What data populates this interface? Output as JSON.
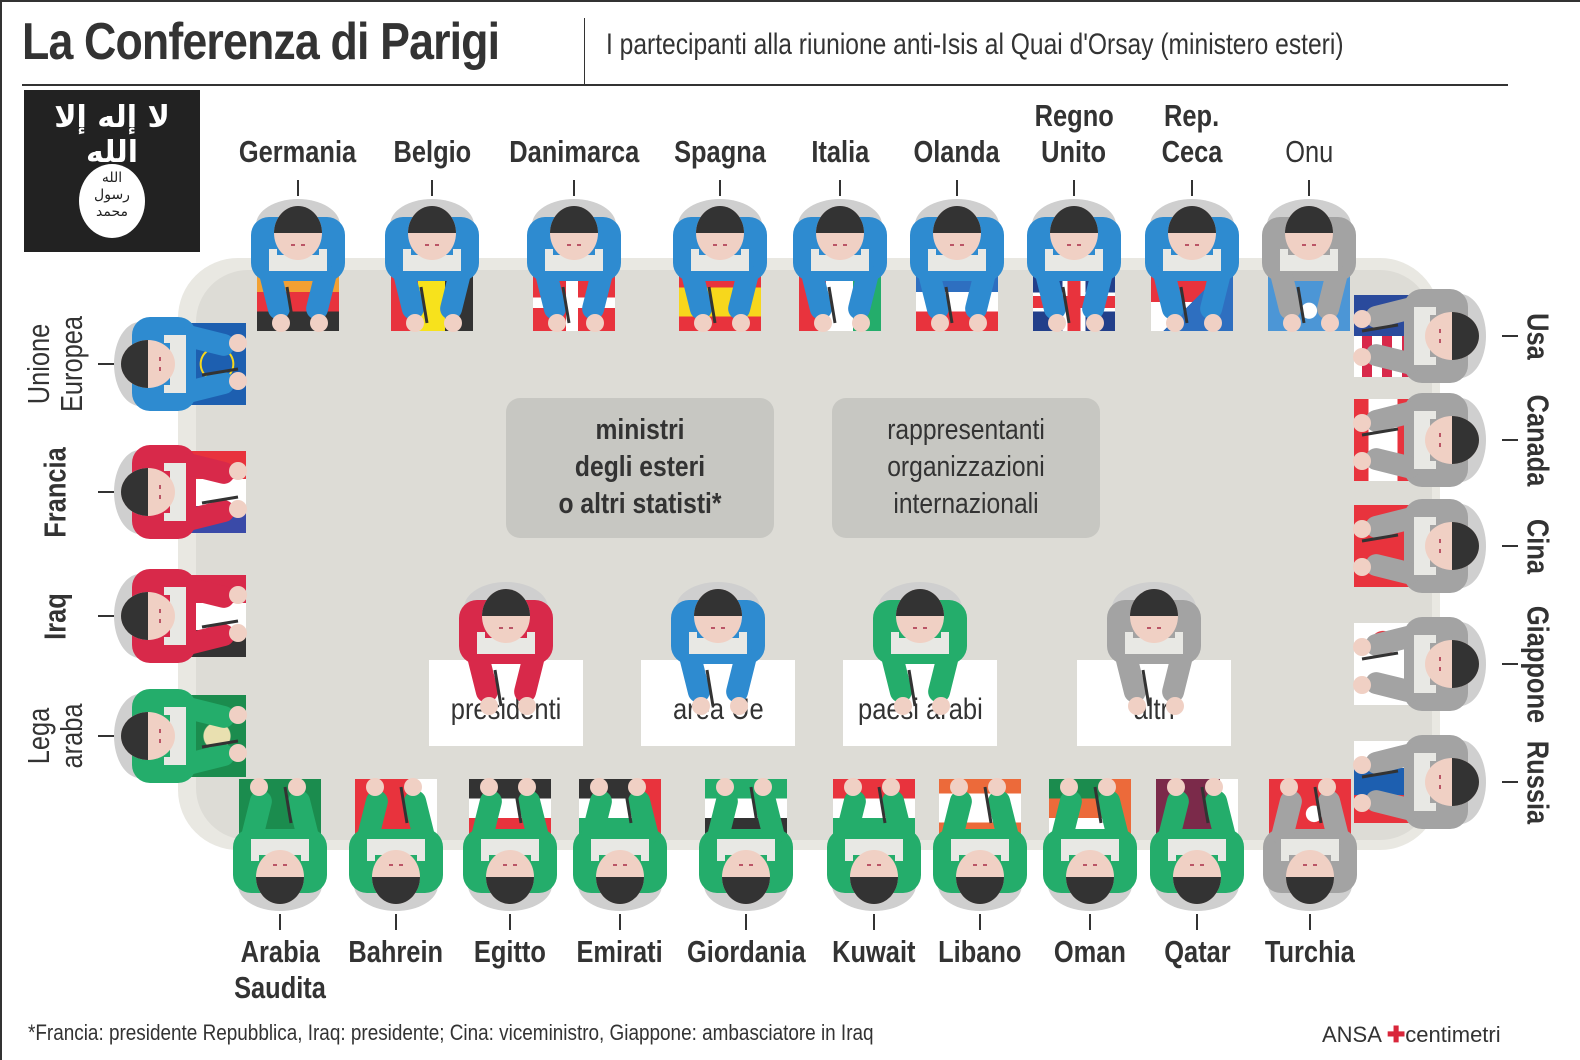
{
  "header": {
    "title": "La Conferenza di Parigi",
    "subtitle": "I partecipanti alla riunione anti-Isis al Quai d'Orsay (ministero esteri)"
  },
  "isis_flag": {
    "top_script": "لا إله إلا الله",
    "seal_lines": [
      "الله",
      "رسول",
      "محمد"
    ]
  },
  "colors": {
    "presidenti": "#d8294a",
    "area_ue": "#2e8bd0",
    "paesi_arabi": "#24ad6b",
    "altri": "#a3a3a3",
    "table": "#dddcd6",
    "table_edge": "#e9e8e2",
    "legend_box": "#c7c7c2",
    "text": "#333333"
  },
  "legend": {
    "ministri_lines": [
      "ministri",
      "degli esteri",
      "o altri statisti*"
    ],
    "rappresentanti_lines": [
      "rappresentanti",
      "organizzazioni",
      "internazionali"
    ],
    "categories": [
      {
        "label": "presidenti",
        "color": "#d8294a"
      },
      {
        "label": "area Ue",
        "color": "#2e8bd0"
      },
      {
        "label": "paesi arabi",
        "color": "#24ad6b"
      },
      {
        "label": "altri",
        "color": "#a3a3a3"
      }
    ]
  },
  "seats": {
    "top": [
      {
        "name": "Germania",
        "lines": [
          "Germania"
        ],
        "group": "area Ue",
        "role": "ministri"
      },
      {
        "name": "Belgio",
        "lines": [
          "Belgio"
        ],
        "group": "area Ue",
        "role": "ministri"
      },
      {
        "name": "Danimarca",
        "lines": [
          "Danimarca"
        ],
        "group": "area Ue",
        "role": "ministri"
      },
      {
        "name": "Spagna",
        "lines": [
          "Spagna"
        ],
        "group": "area Ue",
        "role": "ministri"
      },
      {
        "name": "Italia",
        "lines": [
          "Italia"
        ],
        "group": "area Ue",
        "role": "ministri"
      },
      {
        "name": "Olanda",
        "lines": [
          "Olanda"
        ],
        "group": "area Ue",
        "role": "ministri"
      },
      {
        "name": "Regno Unito",
        "lines": [
          "Regno",
          "Unito"
        ],
        "group": "area Ue",
        "role": "ministri"
      },
      {
        "name": "Rep. Ceca",
        "lines": [
          "Rep.",
          "Ceca"
        ],
        "group": "area Ue",
        "role": "ministri"
      },
      {
        "name": "Onu",
        "lines": [
          "Onu"
        ],
        "group": "altri",
        "role": "rappresentanti"
      }
    ],
    "left": [
      {
        "name": "Unione Europea",
        "lines": [
          "Unione",
          "Europea"
        ],
        "group": "area Ue",
        "role": "rappresentanti"
      },
      {
        "name": "Francia",
        "lines": [
          "Francia"
        ],
        "group": "presidenti",
        "role": "ministri"
      },
      {
        "name": "Iraq",
        "lines": [
          "Iraq"
        ],
        "group": "presidenti",
        "role": "ministri"
      },
      {
        "name": "Lega araba",
        "lines": [
          "Lega",
          "araba"
        ],
        "group": "paesi arabi",
        "role": "rappresentanti"
      }
    ],
    "right": [
      {
        "name": "Usa",
        "lines": [
          "Usa"
        ],
        "group": "altri",
        "role": "ministri"
      },
      {
        "name": "Canada",
        "lines": [
          "Canada"
        ],
        "group": "altri",
        "role": "ministri"
      },
      {
        "name": "Cina",
        "lines": [
          "Cina"
        ],
        "group": "altri",
        "role": "ministri"
      },
      {
        "name": "Giappone",
        "lines": [
          "Giappone"
        ],
        "group": "altri",
        "role": "ministri"
      },
      {
        "name": "Russia",
        "lines": [
          "Russia"
        ],
        "group": "altri",
        "role": "ministri"
      }
    ],
    "bottom": [
      {
        "name": "Arabia Saudita",
        "lines": [
          "Arabia",
          "Saudita"
        ],
        "group": "paesi arabi",
        "role": "ministri"
      },
      {
        "name": "Bahrein",
        "lines": [
          "Bahrein"
        ],
        "group": "paesi arabi",
        "role": "ministri"
      },
      {
        "name": "Egitto",
        "lines": [
          "Egitto"
        ],
        "group": "paesi arabi",
        "role": "ministri"
      },
      {
        "name": "Emirati",
        "lines": [
          "Emirati"
        ],
        "group": "paesi arabi",
        "role": "ministri"
      },
      {
        "name": "Giordania",
        "lines": [
          "Giordania"
        ],
        "group": "paesi arabi",
        "role": "ministri"
      },
      {
        "name": "Kuwait",
        "lines": [
          "Kuwait"
        ],
        "group": "paesi arabi",
        "role": "ministri"
      },
      {
        "name": "Libano",
        "lines": [
          "Libano"
        ],
        "group": "paesi arabi",
        "role": "ministri"
      },
      {
        "name": "Oman",
        "lines": [
          "Oman"
        ],
        "group": "paesi arabi",
        "role": "ministri"
      },
      {
        "name": "Qatar",
        "lines": [
          "Qatar"
        ],
        "group": "paesi arabi",
        "role": "ministri"
      },
      {
        "name": "Turchia",
        "lines": [
          "Turchia"
        ],
        "group": "altri",
        "role": "ministri"
      }
    ]
  },
  "footer": {
    "footnote": "*Francia: presidente Repubblica, Iraq: presidente; Cina: viceministro, Giappone: ambasciatore in Iraq",
    "credit_ansa": "ANSA",
    "credit_mark": "✚",
    "credit_centimetri": "centimetri"
  }
}
